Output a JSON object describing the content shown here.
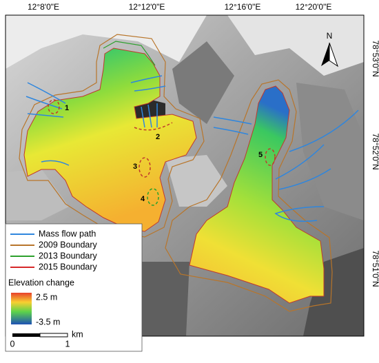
{
  "map": {
    "longitude_labels": [
      "12°8'0\"E",
      "12°12'0\"E",
      "12°16'0\"E",
      "12°20'0\"E"
    ],
    "latitude_labels": [
      "78°53'0\"N",
      "78°52'0\"N",
      "78°51'0\"N"
    ],
    "north_arrow": "N",
    "site_labels": [
      "1",
      "2",
      "3",
      "4",
      "5"
    ],
    "legend": {
      "items": [
        "Mass flow path",
        "2009 Boundary",
        "2013 Boundary",
        "2015 Boundary"
      ],
      "colorbar_title": "Elevation change",
      "colorbar_max": "2.5 m",
      "colorbar_min": "-3.5 m"
    },
    "scale_bar": {
      "start": "0",
      "end": "1",
      "unit": "km"
    }
  }
}
